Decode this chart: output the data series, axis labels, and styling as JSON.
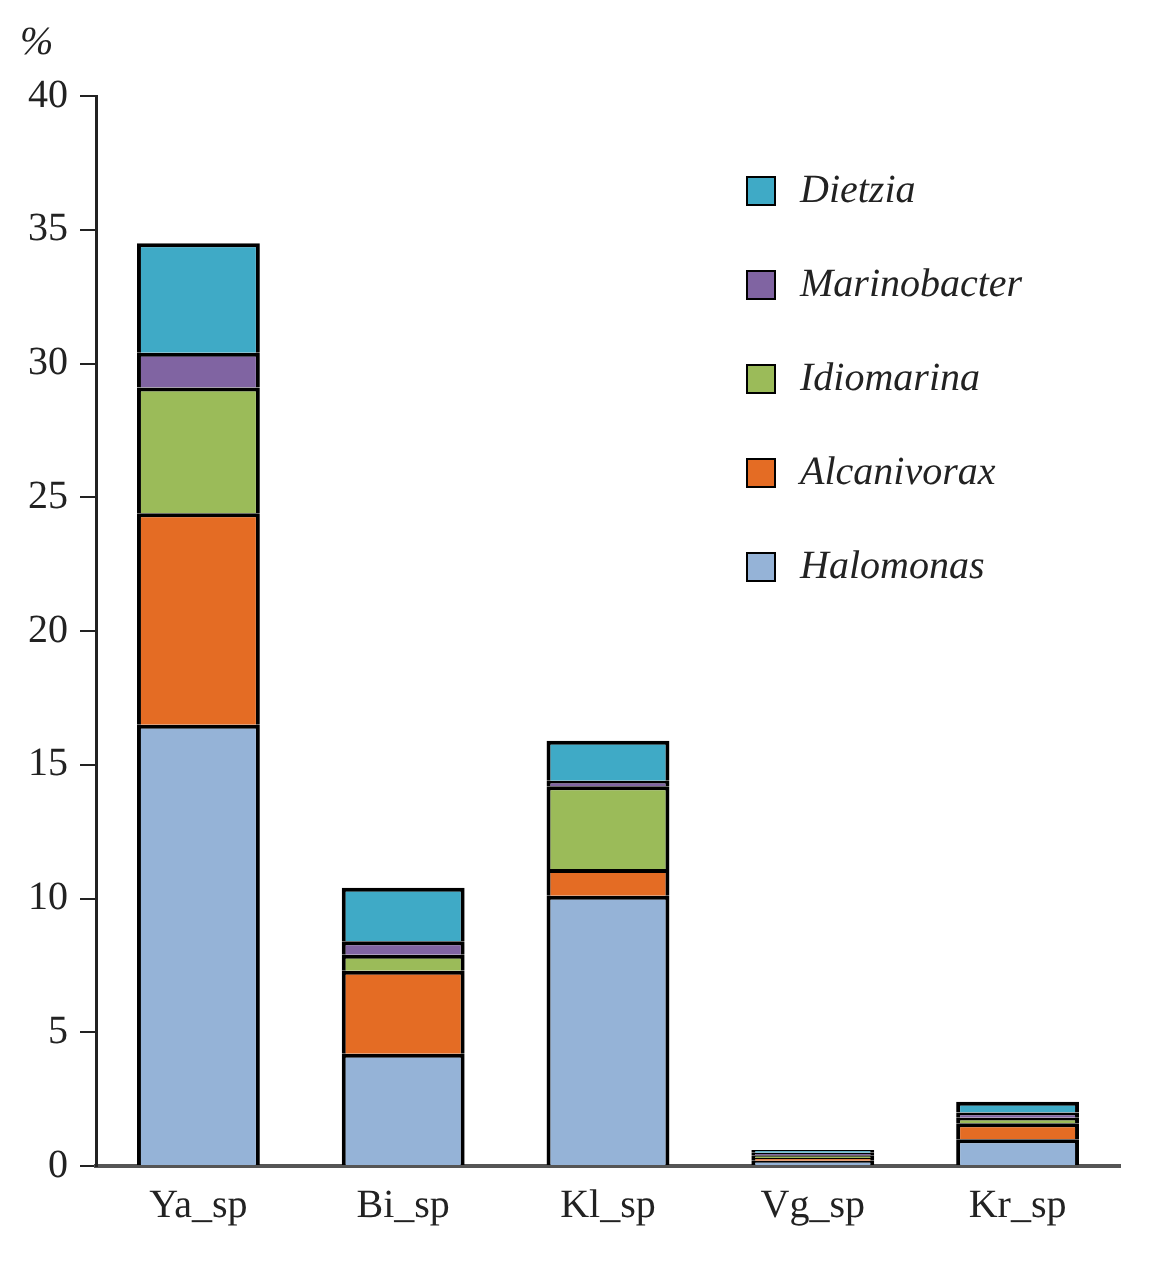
{
  "chart_data": {
    "type": "bar",
    "ylabel": "%",
    "categories": [
      "Ya_sp",
      "Bi_sp",
      "Kl_sp",
      "Vg_sp",
      "Kr_sp"
    ],
    "stacked": true,
    "legend": "top right",
    "grid": false,
    "ylim": [
      0,
      40
    ],
    "yticks": [
      0,
      5,
      10,
      15,
      20,
      25,
      30,
      35,
      40
    ],
    "series": [
      {
        "name": "Halomonas",
        "color": "#95b3d7",
        "values": [
          16.5,
          4.2,
          10.1,
          0.2,
          1.0
        ]
      },
      {
        "name": "Alcanivorax",
        "color": "#e46c24",
        "values": [
          7.9,
          3.1,
          1.0,
          0.1,
          0.6
        ]
      },
      {
        "name": "Idiomarina",
        "color": "#9bbb59",
        "values": [
          4.7,
          0.6,
          3.1,
          0.1,
          0.2
        ]
      },
      {
        "name": "Marinobacter",
        "color": "#8064a2",
        "values": [
          1.3,
          0.5,
          0.2,
          0.1,
          0.2
        ]
      },
      {
        "name": "Dietzia",
        "color": "#3faac6",
        "values": [
          4.1,
          2.0,
          1.5,
          0.1,
          0.4
        ]
      }
    ]
  }
}
